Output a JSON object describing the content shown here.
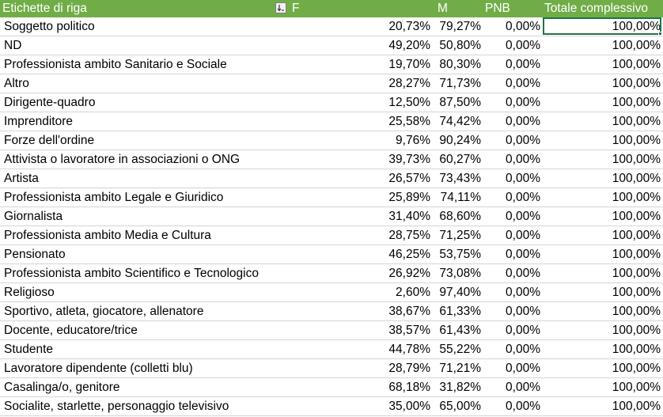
{
  "header": {
    "row_labels": "Etichette di riga",
    "filter_icon": "filter-dropdown-icon",
    "col_f": "F",
    "col_m": "M",
    "col_pnb": "PNB",
    "col_total": "Totale complessivo"
  },
  "colors": {
    "header_bg": "#70ad47",
    "header_text": "#ffffff",
    "selection": "#217346",
    "gridline": "#d4d4d4"
  },
  "rows": [
    {
      "label": "Soggetto politico",
      "f": "20,73%",
      "m": "79,27%",
      "pnb": "0,00%",
      "total": "100,00%"
    },
    {
      "label": "ND",
      "f": "49,20%",
      "m": "50,80%",
      "pnb": "0,00%",
      "total": "100,00%"
    },
    {
      "label": "Professionista ambito Sanitario e Sociale",
      "f": "19,70%",
      "m": "80,30%",
      "pnb": "0,00%",
      "total": "100,00%"
    },
    {
      "label": "Altro",
      "f": "28,27%",
      "m": "71,73%",
      "pnb": "0,00%",
      "total": "100,00%"
    },
    {
      "label": "Dirigente-quadro",
      "f": "12,50%",
      "m": "87,50%",
      "pnb": "0,00%",
      "total": "100,00%"
    },
    {
      "label": "Imprenditore",
      "f": "25,58%",
      "m": "74,42%",
      "pnb": "0,00%",
      "total": "100,00%"
    },
    {
      "label": "Forze dell'ordine",
      "f": "9,76%",
      "m": "90,24%",
      "pnb": "0,00%",
      "total": "100,00%"
    },
    {
      "label": "Attivista o lavoratore in associazioni o ONG",
      "f": "39,73%",
      "m": "60,27%",
      "pnb": "0,00%",
      "total": "100,00%"
    },
    {
      "label": "Artista",
      "f": "26,57%",
      "m": "73,43%",
      "pnb": "0,00%",
      "total": "100,00%"
    },
    {
      "label": "Professionista ambito Legale e Giuridico",
      "f": "25,89%",
      "m": "74,11%",
      "pnb": "0,00%",
      "total": "100,00%"
    },
    {
      "label": "Giornalista",
      "f": "31,40%",
      "m": "68,60%",
      "pnb": "0,00%",
      "total": "100,00%"
    },
    {
      "label": "Professionista ambito Media e Cultura",
      "f": "28,75%",
      "m": "71,25%",
      "pnb": "0,00%",
      "total": "100,00%"
    },
    {
      "label": "Pensionato",
      "f": "46,25%",
      "m": "53,75%",
      "pnb": "0,00%",
      "total": "100,00%"
    },
    {
      "label": "Professionista ambito Scientifico e Tecnologico",
      "f": "26,92%",
      "m": "73,08%",
      "pnb": "0,00%",
      "total": "100,00%"
    },
    {
      "label": "Religioso",
      "f": "2,60%",
      "m": "97,40%",
      "pnb": "0,00%",
      "total": "100,00%"
    },
    {
      "label": "Sportivo, atleta, giocatore, allenatore",
      "f": "38,67%",
      "m": "61,33%",
      "pnb": "0,00%",
      "total": "100,00%"
    },
    {
      "label": "Docente, educatore/trice",
      "f": "38,57%",
      "m": "61,43%",
      "pnb": "0,00%",
      "total": "100,00%"
    },
    {
      "label": "Studente",
      "f": "44,78%",
      "m": "55,22%",
      "pnb": "0,00%",
      "total": "100,00%"
    },
    {
      "label": "Lavoratore dipendente (colletti blu)",
      "f": "28,79%",
      "m": "71,21%",
      "pnb": "0,00%",
      "total": "100,00%"
    },
    {
      "label": "Casalinga/o, genitore",
      "f": "68,18%",
      "m": "31,82%",
      "pnb": "0,00%",
      "total": "100,00%"
    },
    {
      "label": "Socialite, starlette, personaggio televisivo",
      "f": "35,00%",
      "m": "65,00%",
      "pnb": "0,00%",
      "total": "100,00%"
    }
  ]
}
